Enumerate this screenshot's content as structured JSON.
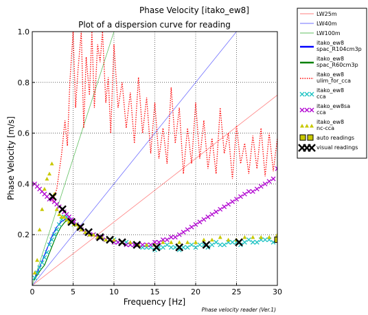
{
  "window_title": "Phase Velocity [itako_ew8]",
  "footer_note": "Phase velocity reader (Ver.1)",
  "chart_data": {
    "type": "line",
    "title": "Plot of a dispersion curve for reading",
    "xlabel": "Frequency [Hz]",
    "ylabel": "Phase Velocity [m/s]",
    "xlim": [
      0,
      30
    ],
    "ylim": [
      0,
      1.0
    ],
    "xticks": [
      "0",
      "5",
      "10",
      "15",
      "20",
      "25",
      "30"
    ],
    "yticks": [
      "0.2",
      "0.4",
      "0.6",
      "0.8",
      "1.0"
    ],
    "grid": true,
    "legend_position": "outside-right",
    "series": [
      {
        "name": "LW25m",
        "kind": "line",
        "color": "#ff7f7f",
        "x": [
          0,
          30
        ],
        "y": [
          0,
          0.75
        ]
      },
      {
        "name": "LW40m",
        "kind": "line",
        "color": "#6f6fff",
        "x": [
          0,
          25
        ],
        "y": [
          0,
          1.0
        ]
      },
      {
        "name": "LW100m",
        "kind": "line",
        "color": "#5fbf5f",
        "x": [
          0,
          10
        ],
        "y": [
          0,
          1.0
        ]
      },
      {
        "name": "itako_ew8\nspac_R104cm3p",
        "kind": "line",
        "color": "#0000ff",
        "x": [
          0.2,
          0.6,
          1.0,
          1.5,
          2.0,
          2.5,
          3.0,
          3.5,
          4.0,
          4.5,
          5.0,
          5.5,
          6.0
        ],
        "y": [
          0.02,
          0.05,
          0.08,
          0.12,
          0.16,
          0.2,
          0.23,
          0.25,
          0.26,
          0.26,
          0.25,
          0.24,
          0.23
        ]
      },
      {
        "name": "itako_ew8\nspac_R60cm3p",
        "kind": "line",
        "color": "#008000",
        "x": [
          0.2,
          0.6,
          1.0,
          1.5,
          2.0,
          2.5,
          3.0,
          3.5,
          4.0,
          4.5,
          5.0,
          5.5
        ],
        "y": [
          0.02,
          0.04,
          0.06,
          0.08,
          0.12,
          0.16,
          0.2,
          0.23,
          0.25,
          0.26,
          0.25,
          0.24
        ]
      },
      {
        "name": "itako_ew8\nulim_for_cca",
        "kind": "dotted",
        "color": "#ff0000",
        "x": [
          2.5,
          3.0,
          3.3,
          3.6,
          4.0,
          4.3,
          4.6,
          5.0,
          5.3,
          5.6,
          6.0,
          6.3,
          6.6,
          7.0,
          7.3,
          7.6,
          8.0,
          8.3,
          8.6,
          9.0,
          9.3,
          9.6,
          10.0,
          10.5,
          11.0,
          11.5,
          12.0,
          12.5,
          13.0,
          13.5,
          14.0,
          14.5,
          15.0,
          15.5,
          16.0,
          16.5,
          17.0,
          17.5,
          18.0,
          18.5,
          19.0,
          19.5,
          20.0,
          20.5,
          21.0,
          21.5,
          22.0,
          22.5,
          23.0,
          23.5,
          24.0,
          24.5,
          25.0,
          25.5,
          26.0,
          26.5,
          27.0,
          27.5,
          28.0,
          28.5,
          29.0,
          29.5,
          30.0
        ],
        "y": [
          0.33,
          0.38,
          0.45,
          0.52,
          0.65,
          0.55,
          0.8,
          1.0,
          0.7,
          0.85,
          1.0,
          0.62,
          0.9,
          0.75,
          1.0,
          0.7,
          0.95,
          0.88,
          1.0,
          0.72,
          0.82,
          0.6,
          0.95,
          0.7,
          0.8,
          0.62,
          0.76,
          0.56,
          0.82,
          0.6,
          0.74,
          0.52,
          0.72,
          0.5,
          0.62,
          0.48,
          0.78,
          0.56,
          0.7,
          0.44,
          0.62,
          0.48,
          0.72,
          0.5,
          0.65,
          0.46,
          0.58,
          0.44,
          0.7,
          0.52,
          0.6,
          0.42,
          0.63,
          0.48,
          0.56,
          0.44,
          0.59,
          0.46,
          0.62,
          0.43,
          0.6,
          0.45,
          0.58
        ]
      },
      {
        "name": "itako_ew8\ncca",
        "kind": "markers",
        "marker": "x",
        "color": "#1cc2c2",
        "x": [
          0.3,
          0.6,
          0.9,
          1.2,
          1.5,
          1.8,
          2.1,
          2.4,
          2.7,
          3.0,
          3.3,
          3.6,
          3.9,
          4.2,
          4.5,
          4.8,
          5.1,
          5.4,
          5.7,
          6.0,
          6.5,
          7.0,
          7.5,
          8.0,
          8.5,
          9.0,
          9.5,
          10.0,
          10.5,
          11.0,
          11.5,
          12.0,
          12.5,
          13.0,
          13.5,
          14.0,
          14.5,
          15.0,
          15.5,
          16.0,
          16.5,
          17.0,
          17.5,
          18.0,
          18.5,
          19.0,
          19.5,
          20.0,
          20.5,
          21.0,
          21.5,
          22.0,
          22.5,
          23.0,
          23.5,
          24.0,
          24.5,
          25.0,
          25.5,
          26.0,
          26.5,
          27.0,
          27.5,
          28.0,
          28.5,
          29.0,
          29.5,
          30.0
        ],
        "y": [
          0.03,
          0.05,
          0.07,
          0.09,
          0.11,
          0.13,
          0.16,
          0.18,
          0.2,
          0.22,
          0.24,
          0.26,
          0.27,
          0.27,
          0.26,
          0.25,
          0.24,
          0.24,
          0.23,
          0.22,
          0.21,
          0.2,
          0.2,
          0.19,
          0.19,
          0.18,
          0.18,
          0.18,
          0.17,
          0.17,
          0.17,
          0.16,
          0.16,
          0.16,
          0.15,
          0.15,
          0.15,
          0.14,
          0.15,
          0.15,
          0.16,
          0.15,
          0.15,
          0.14,
          0.15,
          0.15,
          0.16,
          0.15,
          0.16,
          0.16,
          0.15,
          0.16,
          0.17,
          0.16,
          0.16,
          0.17,
          0.17,
          0.17,
          0.16,
          0.17,
          0.18,
          0.17,
          0.17,
          0.18,
          0.18,
          0.18,
          0.17,
          0.18
        ]
      },
      {
        "name": "itako_ew8sa\ncca",
        "kind": "markers",
        "marker": "x",
        "color": "#b000d0",
        "x": [
          0.3,
          0.6,
          0.9,
          1.2,
          1.5,
          1.8,
          2.1,
          2.4,
          2.7,
          3.0,
          3.3,
          3.6,
          3.9,
          4.2,
          4.5,
          4.8,
          5.1,
          5.4,
          5.7,
          6.0,
          6.5,
          7.0,
          7.5,
          8.0,
          8.5,
          9.0,
          9.5,
          10.0,
          10.5,
          11.0,
          11.5,
          12.0,
          12.5,
          13.0,
          13.5,
          14.0,
          14.5,
          15.0,
          15.5,
          16.0,
          16.5,
          17.0,
          17.5,
          18.0,
          18.5,
          19.0,
          19.5,
          20.0,
          20.5,
          21.0,
          21.5,
          22.0,
          22.5,
          23.0,
          23.5,
          24.0,
          24.5,
          25.0,
          25.5,
          26.0,
          26.5,
          27.0,
          27.5,
          28.0,
          28.5,
          29.0,
          29.5,
          30.0
        ],
        "y": [
          0.4,
          0.39,
          0.38,
          0.37,
          0.36,
          0.35,
          0.34,
          0.34,
          0.33,
          0.32,
          0.31,
          0.3,
          0.29,
          0.28,
          0.27,
          0.26,
          0.25,
          0.24,
          0.23,
          0.22,
          0.21,
          0.2,
          0.2,
          0.19,
          0.19,
          0.18,
          0.18,
          0.17,
          0.17,
          0.17,
          0.16,
          0.16,
          0.16,
          0.16,
          0.16,
          0.16,
          0.16,
          0.17,
          0.17,
          0.18,
          0.18,
          0.19,
          0.19,
          0.2,
          0.21,
          0.22,
          0.23,
          0.24,
          0.25,
          0.26,
          0.27,
          0.28,
          0.29,
          0.3,
          0.31,
          0.32,
          0.33,
          0.34,
          0.35,
          0.36,
          0.37,
          0.37,
          0.38,
          0.39,
          0.4,
          0.41,
          0.42,
          0.46
        ]
      },
      {
        "name": "itako_ew8\nnc-cca",
        "kind": "markers",
        "marker": "triangle",
        "color": "#c8c800",
        "x": [
          0.3,
          0.6,
          0.9,
          1.2,
          1.5,
          1.8,
          2.1,
          2.4,
          2.7,
          3.0,
          3.3,
          3.6,
          3.9,
          4.2,
          4.5,
          4.8,
          5.1,
          5.4,
          5.7,
          6.0,
          6.5,
          7.0,
          7.5,
          8.0,
          8.5,
          9.0,
          9.5,
          10.0,
          11.0,
          12.0,
          13.0,
          14.0,
          15.0,
          16.0,
          17.0,
          18.0,
          19.0,
          20.0,
          21.0,
          22.0,
          23.0,
          24.0,
          25.0,
          26.0,
          27.0,
          28.0,
          29.0,
          30.0
        ],
        "y": [
          0.05,
          0.1,
          0.22,
          0.3,
          0.38,
          0.42,
          0.44,
          0.48,
          0.36,
          0.3,
          0.28,
          0.27,
          0.27,
          0.26,
          0.25,
          0.25,
          0.24,
          0.24,
          0.23,
          0.22,
          0.21,
          0.2,
          0.2,
          0.19,
          0.19,
          0.18,
          0.18,
          0.18,
          0.17,
          0.17,
          0.16,
          0.16,
          0.16,
          0.17,
          0.17,
          0.17,
          0.17,
          0.17,
          0.18,
          0.18,
          0.19,
          0.18,
          0.18,
          0.19,
          0.19,
          0.19,
          0.19,
          0.2
        ]
      },
      {
        "name": "auto readings",
        "kind": "markers",
        "marker": "square",
        "color": "#c8c800",
        "x": [
          30.0
        ],
        "y": [
          0.18
        ]
      },
      {
        "name": "visual readings",
        "kind": "markers",
        "marker": "bigx",
        "color": "#000000",
        "x": [
          2.5,
          3.7,
          4.8,
          5.9,
          6.9,
          8.3,
          9.5,
          11.0,
          12.8,
          15.2,
          18.0,
          21.3,
          25.3
        ],
        "y": [
          0.35,
          0.3,
          0.25,
          0.23,
          0.21,
          0.19,
          0.18,
          0.17,
          0.16,
          0.15,
          0.15,
          0.16,
          0.17
        ]
      }
    ]
  }
}
